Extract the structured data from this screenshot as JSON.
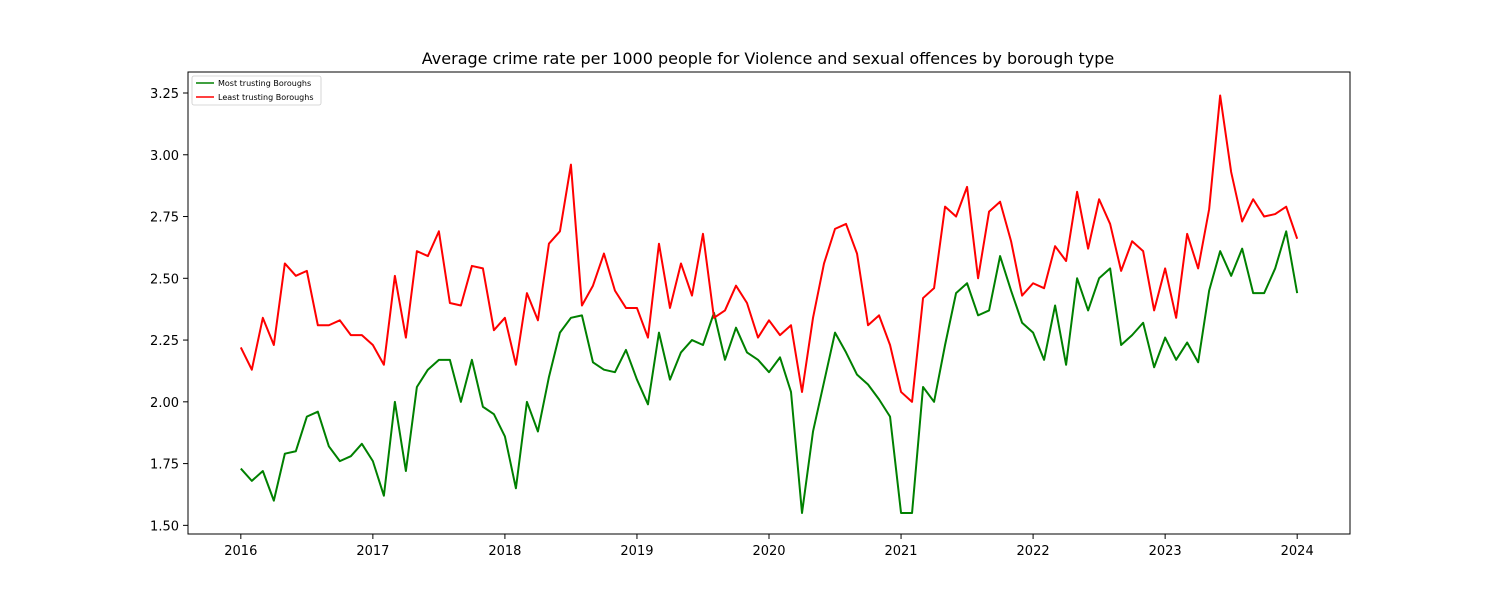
{
  "chart_data": {
    "type": "line",
    "title": "Average crime rate per 1000 people for Violence and sexual offences by borough type",
    "xlabel": "",
    "ylabel": "",
    "x_start": "2016-01",
    "x_ticks": [
      "2016",
      "2017",
      "2018",
      "2019",
      "2020",
      "2021",
      "2022",
      "2023",
      "2024"
    ],
    "y_ticks": [
      "1.50",
      "1.75",
      "2.00",
      "2.25",
      "2.50",
      "2.75",
      "3.00",
      "3.25"
    ],
    "xlim": [
      2015.6,
      2024.4
    ],
    "ylim": [
      1.465,
      3.335
    ],
    "grid": false,
    "legend_position": "top-left",
    "series": [
      {
        "name": "Most trusting Boroughs",
        "color": "#008000",
        "values": [
          1.73,
          1.68,
          1.72,
          1.6,
          1.79,
          1.8,
          1.94,
          1.96,
          1.82,
          1.76,
          1.78,
          1.83,
          1.76,
          1.62,
          2.0,
          1.72,
          2.06,
          2.13,
          2.17,
          2.17,
          2.0,
          2.17,
          1.98,
          1.95,
          1.86,
          1.65,
          2.0,
          1.88,
          2.1,
          2.28,
          2.34,
          2.35,
          2.16,
          2.13,
          2.12,
          2.21,
          2.09,
          1.99,
          2.28,
          2.09,
          2.2,
          2.25,
          2.23,
          2.36,
          2.17,
          2.3,
          2.2,
          2.17,
          2.12,
          2.18,
          2.04,
          1.55,
          1.88,
          2.08,
          2.28,
          2.2,
          2.11,
          2.07,
          2.01,
          1.94,
          1.55,
          1.55,
          2.06,
          2.0,
          2.23,
          2.44,
          2.48,
          2.35,
          2.37,
          2.59,
          2.45,
          2.32,
          2.28,
          2.17,
          2.39,
          2.15,
          2.5,
          2.37,
          2.5,
          2.54,
          2.23,
          2.27,
          2.32,
          2.14,
          2.26,
          2.17,
          2.24,
          2.16,
          2.45,
          2.61,
          2.51,
          2.62,
          2.44,
          2.44,
          2.54,
          2.69,
          2.44
        ]
      },
      {
        "name": "Least trusting Boroughs",
        "color": "#ff0000",
        "values": [
          2.22,
          2.13,
          2.34,
          2.23,
          2.56,
          2.51,
          2.53,
          2.31,
          2.31,
          2.33,
          2.27,
          2.27,
          2.23,
          2.15,
          2.51,
          2.26,
          2.61,
          2.59,
          2.69,
          2.4,
          2.39,
          2.55,
          2.54,
          2.29,
          2.34,
          2.15,
          2.44,
          2.33,
          2.64,
          2.69,
          2.96,
          2.39,
          2.47,
          2.6,
          2.45,
          2.38,
          2.38,
          2.26,
          2.64,
          2.38,
          2.56,
          2.43,
          2.68,
          2.34,
          2.37,
          2.47,
          2.4,
          2.26,
          2.33,
          2.27,
          2.31,
          2.04,
          2.34,
          2.56,
          2.7,
          2.72,
          2.6,
          2.31,
          2.35,
          2.23,
          2.04,
          2.0,
          2.42,
          2.46,
          2.79,
          2.75,
          2.87,
          2.5,
          2.77,
          2.81,
          2.65,
          2.43,
          2.48,
          2.46,
          2.63,
          2.57,
          2.85,
          2.62,
          2.82,
          2.72,
          2.53,
          2.65,
          2.61,
          2.37,
          2.54,
          2.34,
          2.68,
          2.54,
          2.78,
          3.24,
          2.93,
          2.73,
          2.82,
          2.75,
          2.76,
          2.79,
          2.66
        ]
      }
    ]
  }
}
